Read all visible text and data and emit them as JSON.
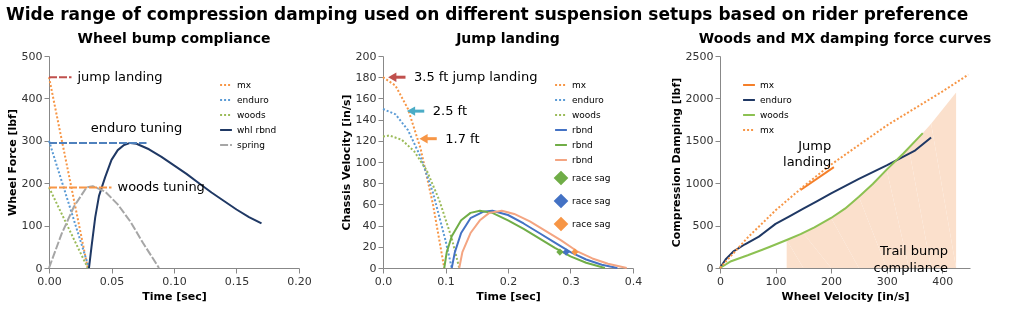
{
  "chart_data": [
    {
      "type": "line",
      "title": "Wheel bump compliance",
      "xlabel": "Time [sec]",
      "ylabel": "Wheel Force [lbf]",
      "xlim": [
        0,
        0.2
      ],
      "ylim": [
        0,
        500
      ],
      "xticks": [
        {
          "value": 0,
          "label": "0.00"
        },
        {
          "value": 0.05,
          "label": "0.05"
        },
        {
          "value": 0.1,
          "label": "0.10"
        },
        {
          "value": 0.15,
          "label": "0.15"
        },
        {
          "value": 0.2,
          "label": "0.20"
        }
      ],
      "yticks": [
        0,
        100,
        200,
        300,
        400,
        500
      ],
      "legend": "top right",
      "annotations": [
        "Wide range of compression damping used on different suspension setups based on rider preference",
        {
          "text": "jump landing",
          "x": 0.018,
          "y": 450
        },
        {
          "text": "enduro tuning",
          "x": 0.07,
          "y": 295
        },
        {
          "text": "woods tuning",
          "x": 0.05,
          "y": 190
        }
      ],
      "series": [
        {
          "name": "mx",
          "color": "#f79646",
          "line_style": "dotted",
          "x": [
            0,
            0.031
          ],
          "values": [
            450,
            0
          ]
        },
        {
          "name": "enduro",
          "color": "#5b9bd5",
          "line_style": "dotted",
          "x": [
            0,
            0.032
          ],
          "values": [
            300,
            0
          ]
        },
        {
          "name": "woods",
          "color": "#9bbb59",
          "line_style": "dotted",
          "x": [
            0,
            0.031
          ],
          "values": [
            190,
            0
          ]
        },
        {
          "name": "whl rbnd",
          "color": "#1f3864",
          "line_style": "solid",
          "x": [
            0.032,
            0.034,
            0.037,
            0.04,
            0.045,
            0.05,
            0.055,
            0.06,
            0.065,
            0.07,
            0.08,
            0.09,
            0.1,
            0.11,
            0.12,
            0.13,
            0.14,
            0.15,
            0.16,
            0.17
          ],
          "values": [
            0,
            50,
            120,
            170,
            215,
            255,
            278,
            290,
            295,
            293,
            280,
            262,
            242,
            222,
            200,
            178,
            158,
            138,
            120,
            105
          ]
        },
        {
          "name": "spring",
          "color": "#a6a6a6",
          "line_style": "dashed",
          "x": [
            0,
            0.01,
            0.02,
            0.03,
            0.035,
            0.045,
            0.055,
            0.065,
            0.075,
            0.088
          ],
          "values": [
            0,
            80,
            145,
            190,
            193,
            180,
            150,
            110,
            60,
            0
          ]
        },
        {
          "color": "#c0504d",
          "line_style": "dashed",
          "x": [
            0,
            0.018
          ],
          "values": [
            450,
            450
          ]
        },
        {
          "color": "#4f81bd",
          "line_style": "dashed",
          "x": [
            0,
            0.078
          ],
          "values": [
            295,
            295
          ]
        },
        {
          "color": "#f79646",
          "line_style": "dashed",
          "x": [
            0,
            0.05
          ],
          "values": [
            190,
            190
          ]
        }
      ]
    },
    {
      "type": "line",
      "title": "Jump landing",
      "xlabel": "Time [sec]",
      "ylabel": "Chassis Velocity [in/s]",
      "xlim": [
        0,
        0.4
      ],
      "ylim": [
        0,
        200
      ],
      "xticks": [
        {
          "value": 0,
          "label": "0.0"
        },
        0.1,
        0.2,
        0.3,
        0.4
      ],
      "yticks": [
        0,
        20,
        40,
        60,
        80,
        100,
        120,
        140,
        160,
        180,
        200
      ],
      "legend": "top right",
      "annotations": [
        {
          "text": "3.5 ft jump landing",
          "x": 0.01,
          "y": 180
        },
        {
          "text": "2.5 ft",
          "x": 0.04,
          "y": 148
        },
        {
          "text": "1.7 ft",
          "x": 0.06,
          "y": 122
        }
      ],
      "series": [
        {
          "name": "mx",
          "color": "#f79646",
          "line_style": "dotted",
          "x": [
            0,
            0.02,
            0.04,
            0.06,
            0.08,
            0.098
          ],
          "values": [
            180,
            172,
            150,
            113,
            60,
            0
          ]
        },
        {
          "name": "enduro",
          "color": "#5b9bd5",
          "line_style": "dotted",
          "x": [
            0,
            0.02,
            0.04,
            0.06,
            0.08,
            0.1,
            0.11
          ],
          "values": [
            150,
            145,
            130,
            105,
            71,
            26,
            0
          ]
        },
        {
          "name": "woods",
          "color": "#9bbb59",
          "line_style": "dotted",
          "x": [
            0,
            0.01,
            0.03,
            0.05,
            0.07,
            0.09,
            0.11,
            0.122
          ],
          "values": [
            124,
            125,
            121,
            110,
            92,
            64,
            28,
            0
          ]
        },
        {
          "name": "rbnd",
          "color": "#4472c4",
          "line_style": "solid",
          "x": [
            0.11,
            0.115,
            0.125,
            0.14,
            0.16,
            0.175,
            0.2,
            0.225,
            0.25,
            0.275,
            0.3,
            0.325,
            0.35,
            0.375
          ],
          "values": [
            0,
            15,
            33,
            47,
            53,
            54,
            50,
            42,
            33,
            24,
            15,
            8,
            3,
            0
          ]
        },
        {
          "name": "rbnd",
          "color": "#70ad47",
          "line_style": "solid",
          "x": [
            0.098,
            0.102,
            0.11,
            0.125,
            0.14,
            0.155,
            0.175,
            0.2,
            0.225,
            0.25,
            0.275,
            0.3,
            0.325,
            0.355
          ],
          "values": [
            0,
            15,
            30,
            45,
            52,
            54,
            52,
            45,
            37,
            28,
            19,
            11,
            5,
            0
          ]
        },
        {
          "name": "rbnd",
          "color": "#f4a582",
          "line_style": "solid",
          "x": [
            0.122,
            0.127,
            0.14,
            0.155,
            0.17,
            0.19,
            0.21,
            0.235,
            0.26,
            0.285,
            0.31,
            0.335,
            0.36,
            0.39
          ],
          "values": [
            0,
            15,
            33,
            45,
            52,
            54,
            51,
            44,
            35,
            26,
            16,
            9,
            4,
            0
          ]
        },
        {
          "name": "race sag",
          "type": "scatter",
          "marker": "diamond",
          "color": "#70ad47",
          "x": [
            0.283
          ],
          "values": [
            15
          ]
        },
        {
          "name": "race sag",
          "type": "scatter",
          "marker": "diamond",
          "color": "#4472c4",
          "x": [
            0.293
          ],
          "values": [
            15
          ]
        },
        {
          "name": "race sag",
          "type": "scatter",
          "marker": "diamond",
          "color": "#f79646",
          "x": [
            0.307
          ],
          "values": [
            15
          ]
        }
      ]
    },
    {
      "type": "line",
      "title": "Woods and MX damping force curves",
      "xlabel": "Wheel Velocity [in/s]",
      "ylabel": "Compression Damping [lbf]",
      "xlim": [
        0,
        450
      ],
      "ylim": [
        0,
        2500
      ],
      "xticks": [
        0,
        100,
        200,
        300,
        400
      ],
      "yticks": [
        0,
        500,
        1000,
        1500,
        2000,
        2500
      ],
      "legend": "top left",
      "annotations": [
        {
          "text": "Jump\nlanding",
          "x": 175,
          "y": 1055
        }
      ],
      "series": [
        {
          "name": "Trail bump\ncompliance",
          "type": "area",
          "color": "#fbe0cc",
          "x": [
            120,
            150,
            200,
            250,
            300,
            340,
            380,
            425
          ],
          "values": [
            330,
            410,
            590,
            840,
            1160,
            1410,
            1700,
            2070
          ]
        },
        {
          "name": "mx",
          "color": "#f57f29",
          "line_style": "solid",
          "x": [
            145,
            205
          ],
          "values": [
            920,
            1190
          ]
        },
        {
          "name": "enduro",
          "color": "#1f3864",
          "line_style": "solid",
          "x": [
            0,
            10,
            25,
            45,
            70,
            100,
            125,
            150,
            175,
            200,
            250,
            300,
            350,
            380
          ],
          "values": [
            0,
            100,
            200,
            280,
            370,
            520,
            610,
            700,
            790,
            880,
            1050,
            1210,
            1380,
            1540
          ]
        },
        {
          "name": "woods",
          "color": "#8cc152",
          "line_style": "solid",
          "x": [
            0,
            20,
            50,
            90,
            120,
            145,
            170,
            200,
            225,
            250,
            275,
            300,
            330,
            365
          ],
          "values": [
            0,
            80,
            150,
            250,
            330,
            400,
            480,
            590,
            700,
            840,
            990,
            1160,
            1350,
            1590
          ]
        },
        {
          "name": "mx",
          "color": "#f79646",
          "line_style": "dotted",
          "x": [
            0,
            25,
            50,
            100,
            150,
            200,
            250,
            300,
            350,
            400,
            447
          ],
          "values": [
            0,
            180,
            360,
            680,
            960,
            1220,
            1450,
            1680,
            1880,
            2080,
            2280
          ]
        }
      ]
    }
  ]
}
